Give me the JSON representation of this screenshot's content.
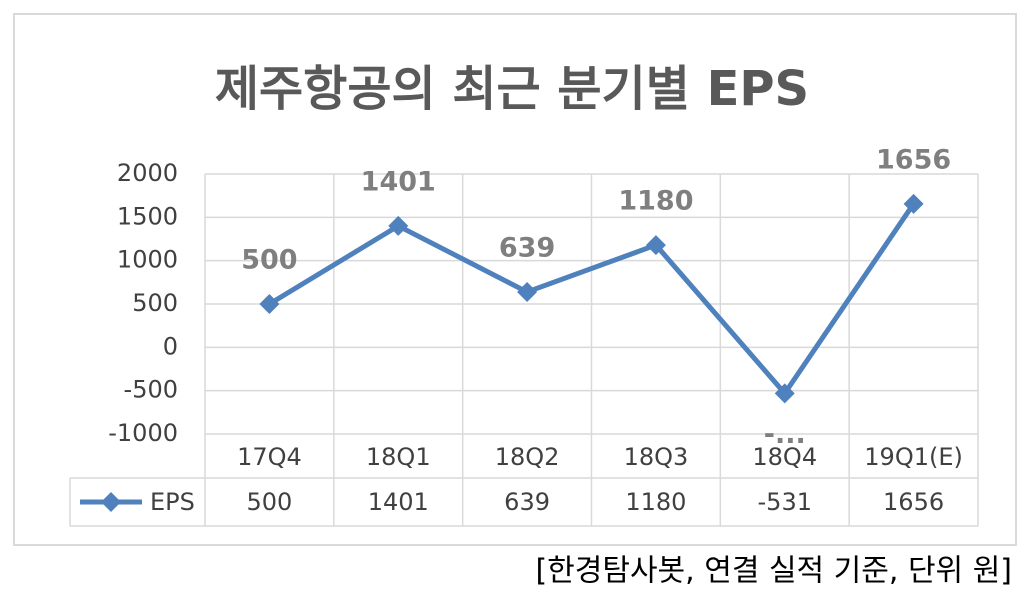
{
  "chart_data": {
    "type": "line",
    "title": "제주항공의 최근 분기별 EPS",
    "categories": [
      "17Q4",
      "18Q1",
      "18Q2",
      "18Q3",
      "18Q4",
      "19Q1(E)"
    ],
    "series": [
      {
        "name": "EPS",
        "color": "#4f81bd",
        "values": [
          500,
          1401,
          639,
          1180,
          -531,
          1656
        ],
        "value_labels": [
          "500",
          "1401",
          "639",
          "1180",
          "-...",
          "1656"
        ]
      }
    ],
    "ylim": [
      -1000,
      2000
    ],
    "yticks": [
      -1000,
      -500,
      0,
      500,
      1000,
      1500,
      2000
    ],
    "grid": true,
    "note": "[한경탐사봇, 연결 실적 기준, 단위 원]"
  }
}
